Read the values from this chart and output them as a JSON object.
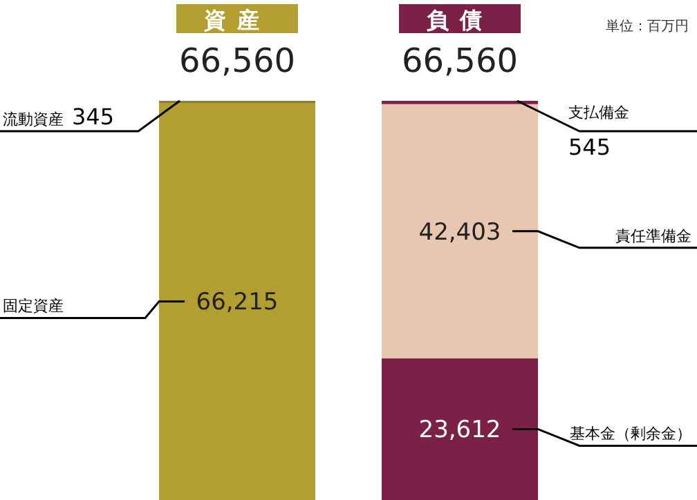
{
  "chart_data": {
    "type": "bar",
    "stacked": true,
    "categories": [
      "資産",
      "負債"
    ],
    "series": [
      {
        "name": "固定資産",
        "color": "#b39e32",
        "values": [
          66215,
          null
        ],
        "value_labels": [
          "66,215",
          null
        ]
      },
      {
        "name": "流動資産",
        "color": "#8e7a3c",
        "values": [
          345,
          null
        ],
        "value_labels": [
          "345",
          null
        ]
      },
      {
        "name": "基本金（剰余金）",
        "color": "#7b2046",
        "values": [
          null,
          23612
        ],
        "value_labels": [
          null,
          "23,612"
        ]
      },
      {
        "name": "責任準備金",
        "color": "#e8c7b0",
        "values": [
          null,
          42403
        ],
        "value_labels": [
          null,
          "42,403"
        ]
      },
      {
        "name": "支払備金",
        "color": "#7b2046",
        "values": [
          null,
          545
        ],
        "value_labels": [
          null,
          "545"
        ]
      }
    ],
    "totals": [
      "66,560",
      "66,560"
    ],
    "annotations": [
      "単位：百万円"
    ]
  }
}
